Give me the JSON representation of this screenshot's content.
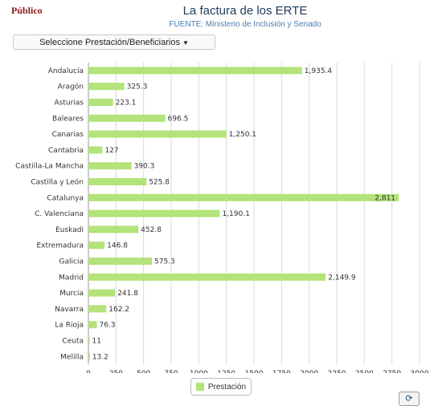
{
  "header": {
    "brand": "Público",
    "title": "La factura de los ERTE",
    "subtitle": "FUENTE: Ministerio de Inclusión y Senado"
  },
  "selector": {
    "label": "Seleccione Prestación/Beneficiarios"
  },
  "legend": {
    "label": "Prestación"
  },
  "colors": {
    "bar": "#b3e37a",
    "grid": "#d9d9d9",
    "label": "#333333"
  },
  "icons": {
    "refresh": "refresh-icon",
    "dropdown": "caret-down-icon"
  },
  "chart_data": {
    "type": "bar",
    "orientation": "horizontal",
    "categories": [
      "Andalucía",
      "Aragón",
      "Asturias",
      "Baleares",
      "Canarias",
      "Cantabria",
      "Castilla-La Mancha",
      "Castilla y León",
      "Catalunya",
      "C. Valenciana",
      "Euskadi",
      "Extremadura",
      "Galicia",
      "Madrid",
      "Murcia",
      "Navarra",
      "La Rioja",
      "Ceuta",
      "Melilla"
    ],
    "series": [
      {
        "name": "Prestación",
        "values": [
          1935.4,
          325.3,
          223.1,
          696.5,
          1250.1,
          127,
          390.3,
          525.8,
          2811,
          1190.1,
          452.8,
          146.8,
          575.3,
          2149.9,
          241.8,
          162.2,
          76.3,
          11,
          13.2
        ],
        "labels": [
          "1,935.4",
          "325.3",
          "223.1",
          "696.5",
          "1,250.1",
          "127",
          "390.3",
          "525.8",
          "2,811",
          "1,190.1",
          "452.8",
          "146.8",
          "575.3",
          "2,149.9",
          "241.8",
          "162.2",
          "76.3",
          "11",
          "13.2"
        ]
      }
    ],
    "xlim": [
      0,
      3000
    ],
    "xticks": [
      0,
      250,
      500,
      750,
      1000,
      1250,
      1500,
      1750,
      2000,
      2250,
      2500,
      2750,
      3000
    ],
    "grid": true,
    "legend": "bottom-center"
  }
}
